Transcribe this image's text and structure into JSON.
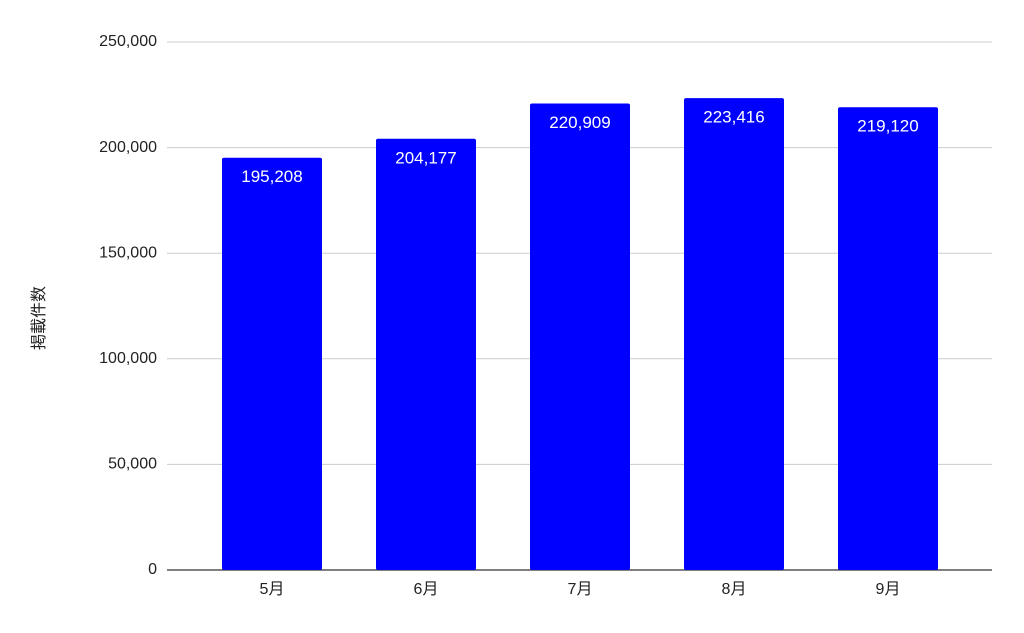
{
  "chart_data": {
    "type": "bar",
    "y_label": "掲載件数",
    "categories": [
      "5月",
      "6月",
      "7月",
      "8月",
      "9月"
    ],
    "values": [
      195208,
      204177,
      220909,
      223416,
      219120
    ],
    "value_labels": [
      "195,208",
      "204,177",
      "220,909",
      "223,416",
      "219,120"
    ],
    "color": "#0000ff",
    "ylim": [
      0,
      250000
    ],
    "yticks": [
      0,
      {
        "value": 50000,
        "label": "50,000"
      },
      {
        "value": 100000,
        "label": "100,000"
      },
      {
        "value": 150000,
        "label": "150,000"
      },
      {
        "value": 200000,
        "label": "200,000"
      },
      {
        "value": 250000,
        "label": "250,000"
      }
    ],
    "grid": true
  }
}
